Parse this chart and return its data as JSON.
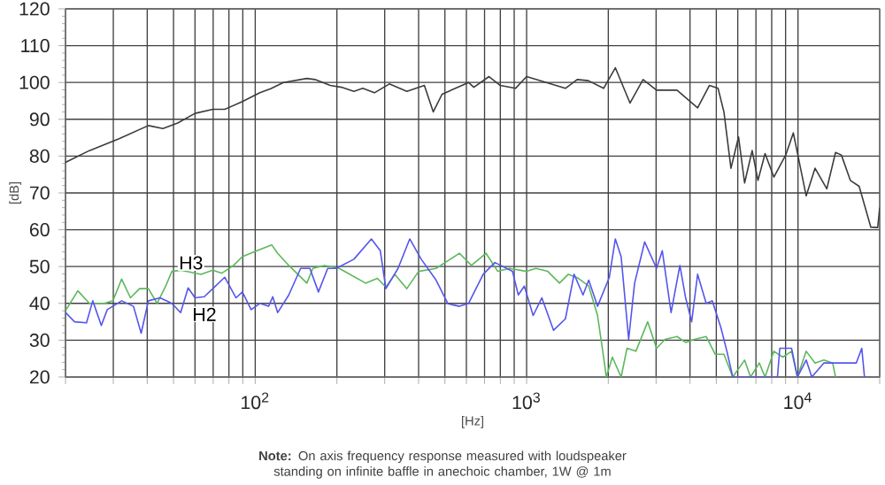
{
  "chart_data": {
    "type": "line",
    "log": "x",
    "grid": true,
    "xlabel": "[Hz]",
    "ylabel": "[dB]",
    "xlim": [
      20,
      20000
    ],
    "ylim": [
      20,
      120
    ],
    "xticks": [
      {
        "value": 20,
        "label": null
      },
      {
        "value": 30,
        "label": null
      },
      {
        "value": 40,
        "label": null
      },
      {
        "value": 50,
        "label": null
      },
      {
        "value": 60,
        "label": null
      },
      {
        "value": 70,
        "label": null
      },
      {
        "value": 80,
        "label": null
      },
      {
        "value": 90,
        "label": null
      },
      {
        "value": 100,
        "label": "10$^{2}$"
      },
      {
        "value": 200,
        "label": null
      },
      {
        "value": 300,
        "label": null
      },
      {
        "value": 400,
        "label": null
      },
      {
        "value": 500,
        "label": null
      },
      {
        "value": 600,
        "label": null
      },
      {
        "value": 700,
        "label": null
      },
      {
        "value": 800,
        "label": null
      },
      {
        "value": 900,
        "label": null
      },
      {
        "value": 1000,
        "label": "10$^{3}$"
      },
      {
        "value": 2000,
        "label": null
      },
      {
        "value": 3000,
        "label": null
      },
      {
        "value": 4000,
        "label": null
      },
      {
        "value": 5000,
        "label": null
      },
      {
        "value": 6000,
        "label": null
      },
      {
        "value": 7000,
        "label": null
      },
      {
        "value": 8000,
        "label": null
      },
      {
        "value": 9000,
        "label": null
      },
      {
        "value": 10000,
        "label": "10$^{4}$"
      },
      {
        "value": 20000,
        "label": null
      }
    ],
    "yticks": [
      20,
      30,
      40,
      50,
      60,
      70,
      80,
      90,
      100,
      110,
      120
    ],
    "series": [
      {
        "color": "#3c3c3c",
        "x": [
          20,
          24.5,
          31.5,
          40.4,
          45.7,
          51.8,
          60,
          69.8,
          77.2,
          89.7,
          104,
          114,
          127,
          155,
          166,
          189,
          208,
          231,
          249,
          275,
          312,
          362,
          420,
          453,
          488,
          611,
          639,
          727,
          800,
          910,
          1000,
          1390,
          1536,
          1688,
          1922,
          2123,
          2405,
          2686,
          3012,
          3583,
          4267,
          4714,
          5077,
          5334,
          5662,
          6040,
          6357,
          6778,
          7120,
          7563,
          8150,
          9010,
          9610,
          10720,
          11560,
          12770,
          13750,
          14450,
          15590,
          16800,
          18550,
          19670,
          20000
        ],
        "values": [
          78.3,
          81.5,
          84.7,
          88.3,
          87.5,
          89,
          91.6,
          92.7,
          92.7,
          94.8,
          97.2,
          98.3,
          100,
          101.1,
          100.8,
          99.2,
          98.7,
          97.6,
          98.4,
          97.2,
          99.6,
          97.6,
          99.2,
          92,
          96.8,
          100,
          98.7,
          101.6,
          99.2,
          98.4,
          101.6,
          98.4,
          100.8,
          100.5,
          98.4,
          104,
          94.4,
          100.8,
          97.9,
          97.9,
          93.1,
          99.2,
          98.4,
          92,
          76.7,
          85.2,
          72.7,
          81.5,
          73.4,
          80.7,
          74.3,
          80.3,
          86.3,
          69.2,
          76.7,
          71.1,
          81,
          80.3,
          73.4,
          71.8,
          60.7,
          60.6,
          66
        ]
      },
      {
        "color": "#5cb85c",
        "x": [
          20,
          22.2,
          24.5,
          27.8,
          29.9,
          32.2,
          34.7,
          37.5,
          40.4,
          43.5,
          46.8,
          49.3,
          53.1,
          63.1,
          69.8,
          75.3,
          83.2,
          89.7,
          101.5,
          115,
          121,
          133,
          155,
          163,
          180,
          204,
          255,
          282,
          303,
          327,
          362,
          400,
          464,
          566,
          626,
          709,
          783,
          865,
          1000,
          1082,
          1196,
          1322,
          1425,
          1536,
          1694,
          1826,
          1922,
          1967,
          2070,
          2230,
          2344,
          2528,
          2793,
          3012,
          3236,
          3583,
          3855,
          4153,
          4589,
          4950,
          5334,
          5750,
          6357,
          6687,
          7200,
          7563,
          8150,
          8790,
          9470,
          9950,
          10720,
          11560,
          12450,
          13420,
          13750
        ],
        "values": [
          38,
          43.4,
          40,
          40,
          40.7,
          46.6,
          41.5,
          44,
          44,
          40,
          44.7,
          48.7,
          49,
          47.9,
          49,
          48.2,
          50.3,
          52.7,
          54.3,
          55.9,
          53.6,
          50.3,
          45.5,
          49.5,
          50.3,
          49.5,
          45.5,
          46.8,
          44.4,
          47.9,
          44,
          48.7,
          49.5,
          53.6,
          50.3,
          53.6,
          48.7,
          49.5,
          48.7,
          49.5,
          48.7,
          45.5,
          47.9,
          47,
          44.7,
          36.7,
          25.4,
          20,
          25.4,
          20,
          27.8,
          27,
          35,
          27.8,
          30.2,
          31,
          29.4,
          30.2,
          31,
          26.2,
          26.2,
          20,
          24.6,
          20,
          23.8,
          20,
          27,
          25.4,
          27,
          20,
          27,
          23.8,
          24.6,
          23.8,
          20
        ]
      },
      {
        "color": "#5555ee",
        "x": [
          20,
          21.6,
          23.9,
          25.2,
          27.1,
          28.5,
          32.2,
          35.6,
          38,
          40.4,
          44.6,
          49.3,
          53.1,
          56.6,
          60,
          64.9,
          69.8,
          77.2,
          85,
          89.7,
          96.6,
          104,
          112,
          116,
          121,
          133,
          147,
          159,
          171,
          185,
          199,
          231,
          268,
          289,
          303,
          336,
          371,
          409,
          464,
          513,
          566,
          611,
          692,
          764,
          887,
          932,
          981,
          1057,
          1138,
          1257,
          1390,
          1496,
          1614,
          1694,
          1826,
          2018,
          2123,
          2230,
          2377,
          2500,
          2723,
          3012,
          3162,
          3407,
          3672,
          3855,
          4056,
          4267,
          4589,
          4830,
          5200,
          5470,
          5750,
          8400,
          8570,
          9470,
          9950,
          10720,
          11240,
          12450,
          16390,
          17180,
          17580
        ],
        "values": [
          37.5,
          35,
          34.7,
          40.7,
          34,
          38.3,
          40.7,
          39.2,
          31.9,
          40.7,
          41.5,
          40,
          37.5,
          44.2,
          41.5,
          41.8,
          44,
          47.1,
          41.5,
          43.1,
          38.3,
          40,
          39.2,
          41.8,
          37.5,
          42.3,
          49.5,
          49.5,
          43.1,
          49.5,
          49.5,
          52,
          57.5,
          54.3,
          44,
          49.5,
          57.5,
          52,
          46.3,
          39.9,
          39.2,
          40,
          47.9,
          51.1,
          48.7,
          42.3,
          44.7,
          36.7,
          41.5,
          32.7,
          35.8,
          47.9,
          42.3,
          46.3,
          39.2,
          47.1,
          57.5,
          52.7,
          30.2,
          45.5,
          56.7,
          49.5,
          54.3,
          37.5,
          50.3,
          41.5,
          35,
          47.9,
          40,
          40.7,
          33.4,
          27,
          20,
          20,
          27.8,
          27.8,
          20,
          24.6,
          20,
          23.8,
          23.8,
          27.8,
          20
        ]
      }
    ],
    "annotations": [
      {
        "text": "H3",
        "x": 58,
        "y": 51
      },
      {
        "text": "H2",
        "x": 65,
        "y": 37
      },
      "**Note:** On axis frequency response measured with loudspeaker standing on infinite baffle in anechoic chamber, 1W @ 1m"
    ]
  }
}
